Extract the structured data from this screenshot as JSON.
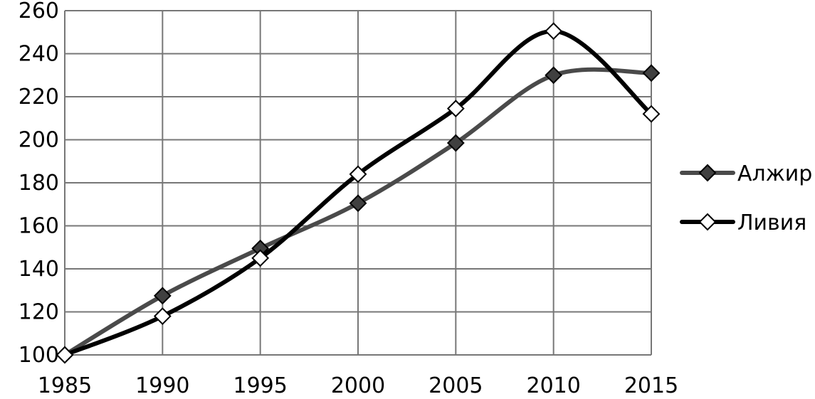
{
  "chart_data": {
    "type": "line",
    "title": "",
    "xlabel": "",
    "ylabel": "",
    "x": [
      1985,
      1990,
      1995,
      2000,
      2005,
      2010,
      2015
    ],
    "xlim": [
      1985,
      2015
    ],
    "ylim": [
      100,
      260
    ],
    "x_ticks": [
      "1985",
      "1990",
      "1995",
      "2000",
      "2005",
      "2010",
      "2015"
    ],
    "y_ticks": [
      "100",
      "120",
      "140",
      "160",
      "180",
      "200",
      "220",
      "240",
      "260"
    ],
    "grid": true,
    "smooth": true,
    "legend_position": "right",
    "series": [
      {
        "name": "Алжир",
        "values": [
          100,
          127.5,
          149.5,
          170.5,
          198.5,
          230,
          231
        ],
        "color": "#4a4a4a",
        "marker": "filled-diamond",
        "marker_color": "#404040"
      },
      {
        "name": "Ливия",
        "values": [
          100,
          118,
          145,
          184,
          214.5,
          250.5,
          212
        ],
        "color": "#000000",
        "marker": "hollow-diamond",
        "marker_color": "#ffffff"
      }
    ]
  }
}
